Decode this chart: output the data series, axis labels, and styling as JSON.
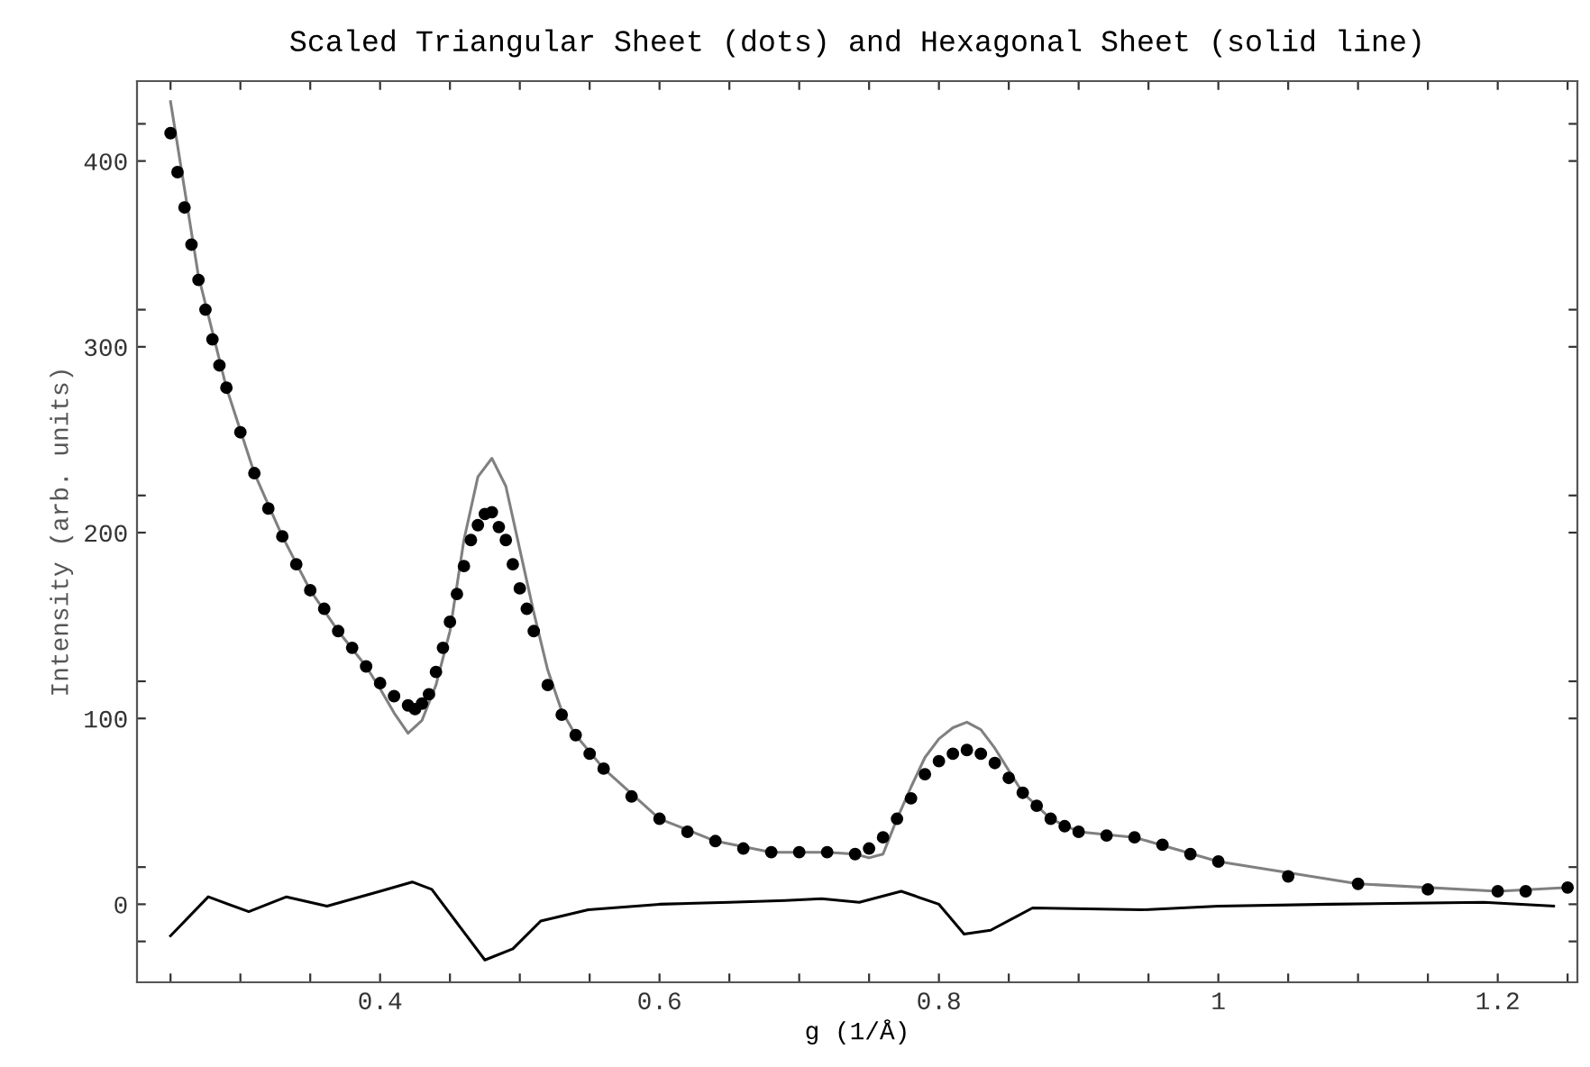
{
  "chart_data": {
    "type": "line",
    "title": "Scaled Triangular Sheet (dots) and Hexagonal Sheet (solid line)",
    "xlabel": "g (1/Å)",
    "ylabel": "Intensity (arb. units)",
    "xlim": [
      0.226,
      1.257
    ],
    "ylim": [
      -42,
      443
    ],
    "xticks": [
      {
        "value": 0.25,
        "label": null
      },
      {
        "value": 0.3,
        "label": null
      },
      {
        "value": 0.35,
        "label": null
      },
      0.4,
      {
        "value": 0.45,
        "label": null
      },
      {
        "value": 0.5,
        "label": null
      },
      {
        "value": 0.55,
        "label": null
      },
      0.6,
      {
        "value": 0.65,
        "label": null
      },
      {
        "value": 0.7,
        "label": null
      },
      {
        "value": 0.75,
        "label": null
      },
      0.8,
      {
        "value": 0.85,
        "label": null
      },
      {
        "value": 0.9,
        "label": null
      },
      {
        "value": 0.95,
        "label": null
      },
      1,
      {
        "value": 1.05,
        "label": null
      },
      {
        "value": 1.1,
        "label": null
      },
      {
        "value": 1.15,
        "label": null
      },
      1.2,
      {
        "value": 1.25,
        "label": null
      }
    ],
    "yticks": [
      {
        "value": -20,
        "label": null
      },
      0,
      {
        "value": 20,
        "label": null
      },
      100,
      {
        "value": 120,
        "label": null
      },
      200,
      {
        "value": 220,
        "label": null
      },
      300,
      {
        "value": 320,
        "label": null
      },
      400,
      {
        "value": 420,
        "label": null
      }
    ],
    "grid": false,
    "legend": false,
    "series": [
      {
        "type": "scatter",
        "color": "#000000",
        "marker": "circle",
        "x": [
          0.25,
          0.255,
          0.26,
          0.265,
          0.27,
          0.275,
          0.28,
          0.285,
          0.29,
          0.3,
          0.31,
          0.32,
          0.33,
          0.34,
          0.35,
          0.36,
          0.37,
          0.38,
          0.39,
          0.4,
          0.41,
          0.42,
          0.425,
          0.43,
          0.435,
          0.44,
          0.445,
          0.45,
          0.455,
          0.46,
          0.465,
          0.47,
          0.475,
          0.48,
          0.485,
          0.49,
          0.495,
          0.5,
          0.505,
          0.51,
          0.52,
          0.53,
          0.54,
          0.55,
          0.56,
          0.58,
          0.6,
          0.62,
          0.64,
          0.66,
          0.68,
          0.7,
          0.72,
          0.74,
          0.75,
          0.76,
          0.77,
          0.78,
          0.79,
          0.8,
          0.81,
          0.82,
          0.83,
          0.84,
          0.85,
          0.86,
          0.87,
          0.88,
          0.89,
          0.9,
          0.92,
          0.94,
          0.96,
          0.98,
          1.0,
          1.05,
          1.1,
          1.15,
          1.2,
          1.22,
          1.25
        ],
        "values": [
          415,
          394,
          375,
          355,
          336,
          320,
          304,
          290,
          278,
          254,
          232,
          213,
          198,
          183,
          169,
          159,
          147,
          138,
          128,
          119,
          112,
          107,
          105,
          108,
          113,
          125,
          138,
          152,
          167,
          182,
          196,
          204,
          210,
          211,
          203,
          196,
          183,
          170,
          159,
          147,
          118,
          102,
          91,
          81,
          73,
          58,
          46,
          39,
          34,
          30,
          28,
          28,
          28,
          27,
          30,
          36,
          46,
          57,
          70,
          77,
          81,
          83,
          81,
          76,
          68,
          60,
          53,
          46,
          42,
          39,
          37,
          36,
          32,
          27,
          23,
          15,
          11,
          8,
          7,
          7,
          9
        ]
      },
      {
        "type": "line",
        "color": "#808080",
        "line_style": "solid",
        "x": [
          0.25,
          0.27,
          0.29,
          0.31,
          0.33,
          0.35,
          0.37,
          0.39,
          0.4,
          0.41,
          0.42,
          0.43,
          0.44,
          0.45,
          0.46,
          0.47,
          0.48,
          0.49,
          0.5,
          0.51,
          0.52,
          0.53,
          0.54,
          0.56,
          0.6,
          0.64,
          0.68,
          0.72,
          0.74,
          0.75,
          0.76,
          0.77,
          0.78,
          0.79,
          0.8,
          0.81,
          0.82,
          0.83,
          0.84,
          0.85,
          0.86,
          0.88,
          0.9,
          0.94,
          1.0,
          1.1,
          1.2,
          1.25
        ],
        "values": [
          432,
          338,
          278,
          232,
          198,
          169,
          147,
          128,
          116,
          103,
          92,
          99,
          118,
          147,
          196,
          230,
          240,
          225,
          191,
          157,
          126,
          104,
          91,
          73,
          46,
          34,
          28,
          28,
          27,
          25,
          27,
          46,
          63,
          79,
          89,
          95,
          98,
          94,
          84,
          72,
          60,
          46,
          39,
          36,
          23,
          11,
          7,
          9
        ]
      },
      {
        "color": "#000000",
        "line_style": "solid",
        "x": [
          0.25,
          0.277,
          0.306,
          0.333,
          0.362,
          0.4,
          0.423,
          0.437,
          0.454,
          0.475,
          0.495,
          0.515,
          0.549,
          0.6,
          0.65,
          0.69,
          0.716,
          0.743,
          0.773,
          0.8,
          0.818,
          0.837,
          0.867,
          0.945,
          1.0,
          1.08,
          1.19,
          1.24
        ],
        "values": [
          -17,
          4,
          -4,
          4,
          -1,
          7,
          12,
          8,
          -9,
          -30,
          -24,
          -9,
          -3,
          0,
          1,
          2,
          3,
          1,
          7,
          0,
          -16,
          -14,
          -2,
          -3,
          -1,
          0,
          1,
          -1
        ]
      }
    ]
  }
}
